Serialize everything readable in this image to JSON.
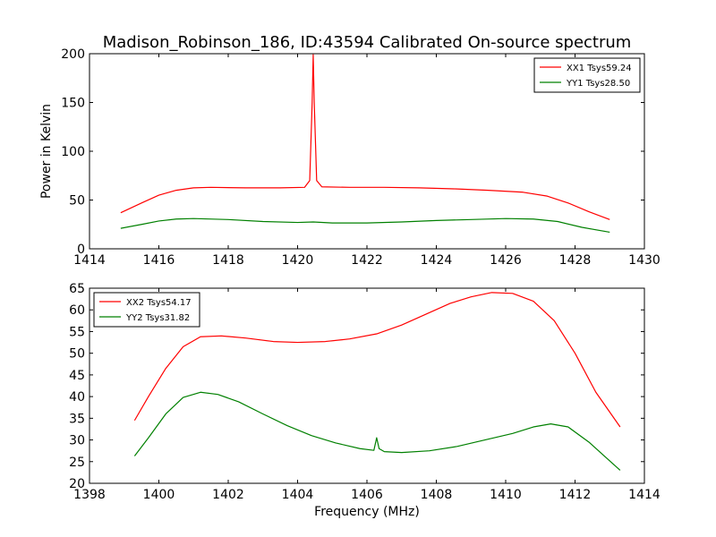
{
  "figure": {
    "title": "Madison_Robinson_186, ID:43594 Calibrated On-source spectrum"
  },
  "chart_data": [
    {
      "type": "line",
      "title": "Madison_Robinson_186, ID:43594 Calibrated On-source spectrum",
      "xlabel": "",
      "ylabel": "Power in Kelvin",
      "xlim": [
        1414,
        1430
      ],
      "ylim": [
        0,
        200
      ],
      "xticks": [
        1414,
        1416,
        1418,
        1420,
        1422,
        1424,
        1426,
        1428,
        1430
      ],
      "yticks": [
        0,
        50,
        100,
        150,
        200
      ],
      "grid": false,
      "legend_position": "top-right",
      "series": [
        {
          "name": "XX1 Tsys59.24",
          "color": "#ff0000",
          "points": [
            [
              1414.9,
              37
            ],
            [
              1415.5,
              47
            ],
            [
              1416.0,
              55
            ],
            [
              1416.5,
              60
            ],
            [
              1417.0,
              62.5
            ],
            [
              1417.5,
              63
            ],
            [
              1418.5,
              62.5
            ],
            [
              1419.5,
              62.5
            ],
            [
              1420.2,
              63
            ],
            [
              1420.35,
              70
            ],
            [
              1420.42,
              150
            ],
            [
              1420.45,
              199
            ],
            [
              1420.48,
              150
            ],
            [
              1420.55,
              70
            ],
            [
              1420.7,
              63.5
            ],
            [
              1421.5,
              63
            ],
            [
              1422.5,
              63
            ],
            [
              1423.5,
              62.5
            ],
            [
              1424.5,
              61.5
            ],
            [
              1425.5,
              60
            ],
            [
              1426.5,
              58
            ],
            [
              1427.2,
              54
            ],
            [
              1427.8,
              47
            ],
            [
              1428.4,
              38
            ],
            [
              1429.0,
              30
            ]
          ]
        },
        {
          "name": "YY1 Tsys28.50",
          "color": "#008000",
          "points": [
            [
              1414.9,
              21
            ],
            [
              1415.5,
              25
            ],
            [
              1416.0,
              28.5
            ],
            [
              1416.5,
              30.5
            ],
            [
              1417.0,
              31
            ],
            [
              1418.0,
              30
            ],
            [
              1419.0,
              28
            ],
            [
              1420.0,
              27
            ],
            [
              1420.45,
              27.5
            ],
            [
              1421.0,
              26.5
            ],
            [
              1422.0,
              26.5
            ],
            [
              1423.0,
              27.5
            ],
            [
              1424.0,
              29
            ],
            [
              1425.0,
              30
            ],
            [
              1426.0,
              31
            ],
            [
              1426.8,
              30.5
            ],
            [
              1427.5,
              28
            ],
            [
              1428.2,
              22
            ],
            [
              1429.0,
              17
            ]
          ]
        }
      ]
    },
    {
      "type": "line",
      "xlabel": "Frequency (MHz)",
      "ylabel": "",
      "xlim": [
        1398,
        1414
      ],
      "ylim": [
        20,
        65
      ],
      "xticks": [
        1398,
        1400,
        1402,
        1404,
        1406,
        1408,
        1410,
        1412,
        1414
      ],
      "yticks": [
        20,
        25,
        30,
        35,
        40,
        45,
        50,
        55,
        60,
        65
      ],
      "grid": false,
      "legend_position": "top-left",
      "series": [
        {
          "name": "XX2 Tsys54.17",
          "color": "#ff0000",
          "points": [
            [
              1399.3,
              34.5
            ],
            [
              1399.7,
              40
            ],
            [
              1400.2,
              46.5
            ],
            [
              1400.7,
              51.5
            ],
            [
              1401.2,
              53.8
            ],
            [
              1401.8,
              54
            ],
            [
              1402.5,
              53.5
            ],
            [
              1403.3,
              52.7
            ],
            [
              1404.0,
              52.5
            ],
            [
              1404.8,
              52.7
            ],
            [
              1405.5,
              53.3
            ],
            [
              1406.3,
              54.5
            ],
            [
              1407.0,
              56.5
            ],
            [
              1407.7,
              59
            ],
            [
              1408.4,
              61.5
            ],
            [
              1409.0,
              63
            ],
            [
              1409.6,
              64
            ],
            [
              1410.2,
              63.8
            ],
            [
              1410.8,
              62
            ],
            [
              1411.4,
              57.5
            ],
            [
              1412.0,
              50
            ],
            [
              1412.6,
              41
            ],
            [
              1413.3,
              33
            ]
          ]
        },
        {
          "name": "YY2 Tsys31.82",
          "color": "#008000",
          "points": [
            [
              1399.3,
              26.3
            ],
            [
              1399.7,
              30.5
            ],
            [
              1400.2,
              36
            ],
            [
              1400.7,
              39.8
            ],
            [
              1401.2,
              41
            ],
            [
              1401.7,
              40.5
            ],
            [
              1402.3,
              38.8
            ],
            [
              1403.0,
              36
            ],
            [
              1403.7,
              33.3
            ],
            [
              1404.4,
              31
            ],
            [
              1405.1,
              29.3
            ],
            [
              1405.8,
              28
            ],
            [
              1406.2,
              27.6
            ],
            [
              1406.28,
              30.5
            ],
            [
              1406.35,
              28
            ],
            [
              1406.5,
              27.3
            ],
            [
              1407.0,
              27.1
            ],
            [
              1407.8,
              27.5
            ],
            [
              1408.6,
              28.5
            ],
            [
              1409.4,
              30
            ],
            [
              1410.2,
              31.5
            ],
            [
              1410.8,
              33
            ],
            [
              1411.3,
              33.7
            ],
            [
              1411.8,
              33
            ],
            [
              1412.4,
              29.5
            ],
            [
              1413.3,
              23
            ]
          ]
        }
      ]
    }
  ]
}
